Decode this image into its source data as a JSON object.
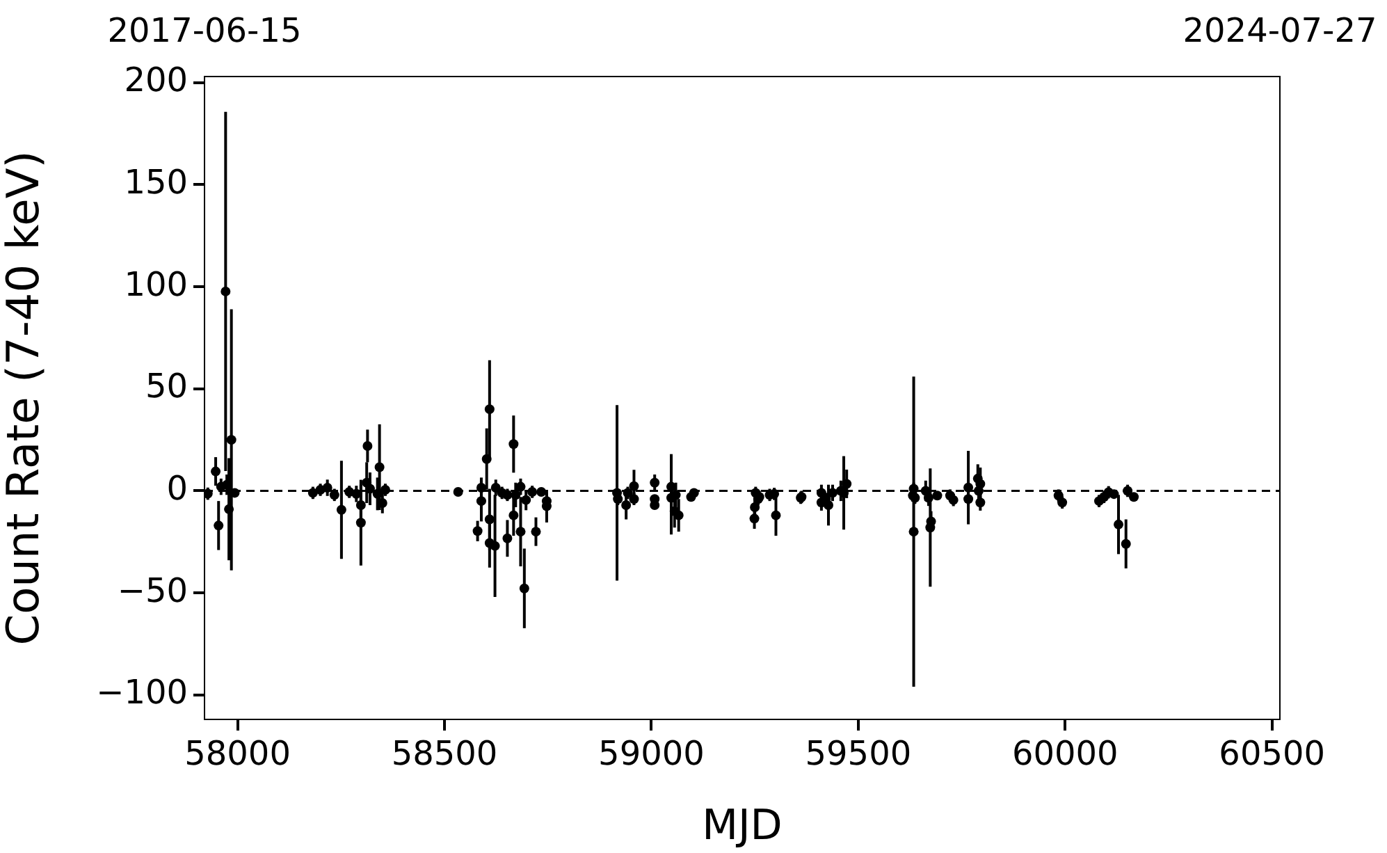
{
  "chart_data": {
    "type": "scatter",
    "xlabel": "MJD",
    "ylabel": "Count Rate (7-40 keV)",
    "annotations": [
      "2017-06-15",
      "2024-07-27"
    ],
    "xlim": [
      57920,
      60519
    ],
    "ylim": [
      -112,
      203
    ],
    "xticks": [
      58000,
      58500,
      59000,
      59500,
      60000,
      60500
    ],
    "yticks": [
      -100,
      -50,
      0,
      50,
      100,
      150,
      200
    ],
    "grid": false,
    "legend": false,
    "marker": "circle",
    "ref_lines": [
      {
        "axis": "y",
        "value": 0,
        "color": "#000000",
        "line_style": "dashed"
      }
    ],
    "series": [
      {
        "color": "#000000",
        "x": [
          57928,
          57947,
          57954,
          57960,
          57971,
          57974,
          57979,
          57985,
          57993,
          58182,
          58200,
          58217,
          58234,
          58251,
          58270,
          58287,
          58298,
          58298,
          58314,
          58312,
          58320,
          58343,
          58338,
          58350,
          58357,
          58533,
          58580,
          58589,
          58589,
          58602,
          58609,
          58609,
          58609,
          58622,
          58624,
          58639,
          58652,
          58652,
          58667,
          58667,
          58672,
          58684,
          58684,
          58693,
          58697,
          58712,
          58721,
          58734,
          58747,
          58747,
          58917,
          58919,
          58939,
          58943,
          58958,
          58958,
          59008,
          59008,
          59008,
          59048,
          59048,
          59056,
          59059,
          59066,
          59096,
          59103,
          59249,
          59250,
          59252,
          59258,
          59261,
          59286,
          59297,
          59301,
          59361,
          59363,
          59411,
          59411,
          59422,
          59428,
          59438,
          59458,
          59465,
          59472,
          59632,
          59634,
          59634,
          59637,
          59663,
          59674,
          59676,
          59670,
          59691,
          59722,
          59730,
          59766,
          59766,
          59789,
          59795,
          59795,
          59791,
          59984,
          59993,
          60082,
          60094,
          60105,
          60118,
          60129,
          60147,
          60151,
          60166
        ],
        "values": [
          -1.4,
          9.5,
          -17,
          2,
          97.7,
          3,
          -9,
          25,
          -1,
          -1,
          0.5,
          1.5,
          -2,
          -9.3,
          -0.5,
          -1.5,
          -15.6,
          -7,
          22,
          4,
          1,
          11.6,
          -1.5,
          -6,
          0.5,
          -0.5,
          -19.7,
          -5,
          1.5,
          15.6,
          40,
          -14,
          -25.6,
          -27,
          1.5,
          -1,
          -23.3,
          -2,
          22.9,
          -12,
          -2,
          2,
          -20,
          -47.8,
          -4.5,
          -0.5,
          -20,
          -0.5,
          -5,
          -7.5,
          -1,
          -4,
          -7,
          -1,
          2.3,
          -4,
          4,
          -4,
          -7,
          2,
          -3.4,
          -10,
          -2,
          -12,
          -3,
          -1,
          -13.6,
          -8,
          -1,
          -4,
          -3,
          -2,
          -1.5,
          -12,
          -3.4,
          -3,
          -1,
          -5.7,
          -4,
          -7,
          -1,
          0,
          -1,
          3.4,
          -2.3,
          1,
          -20,
          -3.4,
          0,
          -18,
          -15,
          -3.4,
          -2.3,
          -2.3,
          -4.5,
          1.6,
          -4,
          6,
          3.4,
          -5.7,
          0,
          -2.3,
          -5.7,
          -5,
          -3,
          -0.7,
          -1.6,
          -16.5,
          -26,
          0,
          -3
        ],
        "errors": [
          3,
          7,
          12,
          4,
          88,
          5,
          25,
          64,
          2,
          3,
          3,
          4,
          3,
          24,
          3,
          4,
          21,
          10,
          8,
          10,
          8,
          21,
          8,
          5,
          3,
          1,
          5,
          10,
          5,
          15,
          24,
          15,
          12,
          25,
          4,
          3,
          9,
          3,
          14,
          10,
          6,
          4,
          17,
          19.5,
          5,
          3,
          7,
          2,
          4,
          8,
          43,
          3,
          7,
          3,
          8,
          3,
          4,
          2,
          2,
          16,
          18,
          8,
          6,
          8,
          2,
          2,
          5,
          5,
          3,
          3,
          3,
          3,
          3,
          10,
          3,
          3,
          4,
          4,
          3,
          10,
          4,
          5,
          18,
          7,
          3,
          3,
          76,
          3,
          5,
          29,
          5,
          4,
          2,
          3,
          3,
          18,
          3,
          7,
          8,
          4,
          5,
          3,
          3,
          3,
          3,
          3,
          2,
          14.5,
          12,
          3,
          2
        ]
      }
    ]
  }
}
